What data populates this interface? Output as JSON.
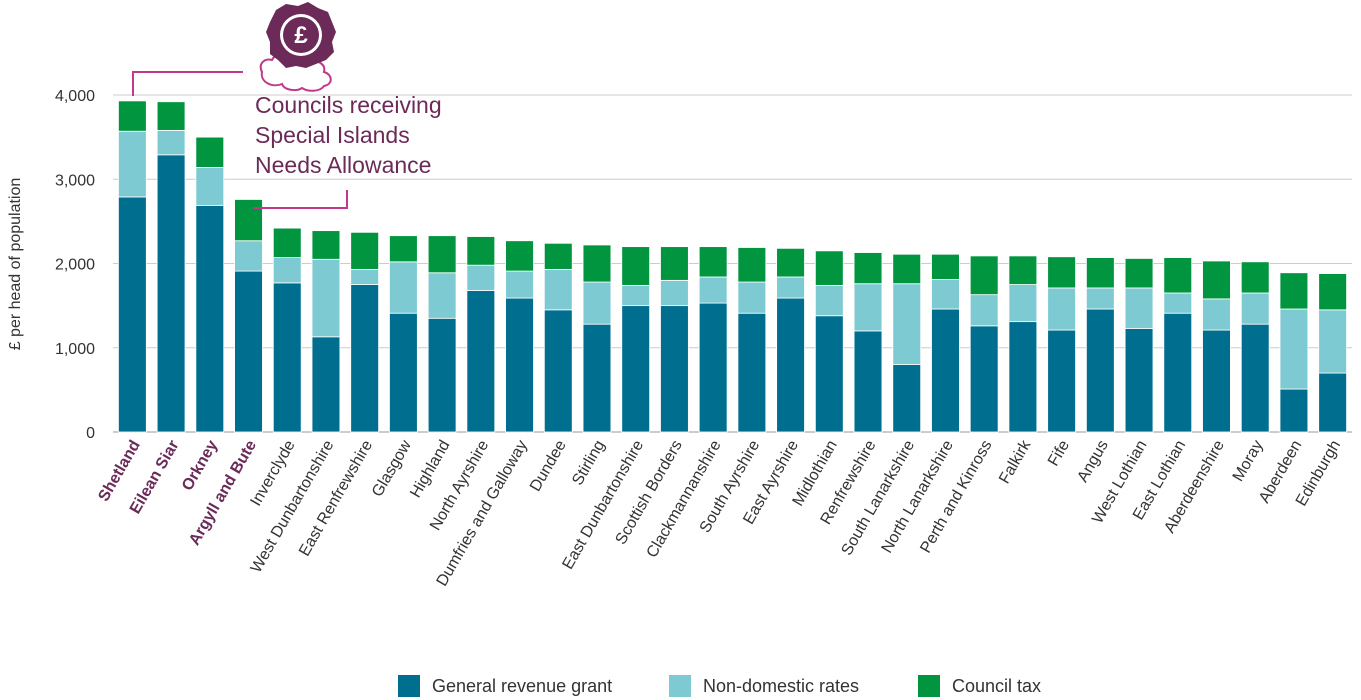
{
  "chart_data": {
    "type": "bar",
    "stacked": true,
    "ylabel": "£ per head of population",
    "xlabel": "",
    "ylim": [
      0,
      4000
    ],
    "y_ticks": [
      "0",
      "1,000",
      "2,000",
      "3,000",
      "4,000"
    ],
    "grid": "horizontal",
    "legend_position": "bottom",
    "annotation": "Councils receiving Special Islands Needs Allowance",
    "annotation_lines": [
      "Councils receiving",
      "Special Islands",
      "Needs Allowance"
    ],
    "highlighted_categories": [
      "Shetland",
      "Eilean Siar",
      "Orkney",
      "Argyll and Bute"
    ],
    "categories": [
      "Shetland",
      "Eilean Siar",
      "Orkney",
      "Argyll and Bute",
      "Inverclyde",
      "West Dunbartonshire",
      "East Renfrewshire",
      "Glasgow",
      "Highland",
      "North Ayrshire",
      "Dumfries and Galloway",
      "Dundee",
      "Stirling",
      "East Dunbartonshire",
      "Scottish Borders",
      "Clackmannanshire",
      "South Ayrshire",
      "East Ayrshire",
      "Midlothian",
      "Renfrewshire",
      "South Lanarkshire",
      "North Lanarkshire",
      "Perth and Kinross",
      "Falkirk",
      "Fife",
      "Angus",
      "West Lothian",
      "East Lothian",
      "Aberdeenshire",
      "Moray",
      "Aberdeen",
      "Edinburgh"
    ],
    "series": [
      {
        "name": "General revenue grant",
        "color": "#006e8f",
        "values": [
          2790,
          3290,
          2690,
          1910,
          1770,
          1130,
          1750,
          1410,
          1350,
          1680,
          1590,
          1450,
          1280,
          1500,
          1500,
          1530,
          1410,
          1590,
          1380,
          1200,
          800,
          1460,
          1260,
          1310,
          1210,
          1460,
          1230,
          1410,
          1210,
          1280,
          510,
          700
        ]
      },
      {
        "name": "Non-domestic rates",
        "color": "#7ecad3",
        "values": [
          780,
          290,
          450,
          360,
          300,
          920,
          180,
          610,
          540,
          300,
          320,
          480,
          500,
          240,
          300,
          310,
          370,
          250,
          360,
          560,
          960,
          350,
          370,
          440,
          500,
          250,
          480,
          240,
          370,
          370,
          950,
          750
        ]
      },
      {
        "name": "Council tax",
        "color": "#00953e",
        "values": [
          360,
          340,
          360,
          490,
          350,
          340,
          440,
          310,
          440,
          340,
          360,
          310,
          440,
          460,
          400,
          360,
          410,
          340,
          410,
          370,
          350,
          300,
          460,
          340,
          370,
          360,
          350,
          420,
          450,
          370,
          430,
          430
        ]
      }
    ]
  },
  "legend": {
    "items": [
      {
        "label": "General revenue grant",
        "color": "#006e8f"
      },
      {
        "label": "Non-domestic rates",
        "color": "#7ecad3"
      },
      {
        "label": "Council tax",
        "color": "#00953e"
      }
    ]
  },
  "icon": "pound-sterling-seal-icon",
  "colors": {
    "accent": "#c2388b",
    "highlight_text": "#6b2a58",
    "grid": "#cccccc"
  }
}
